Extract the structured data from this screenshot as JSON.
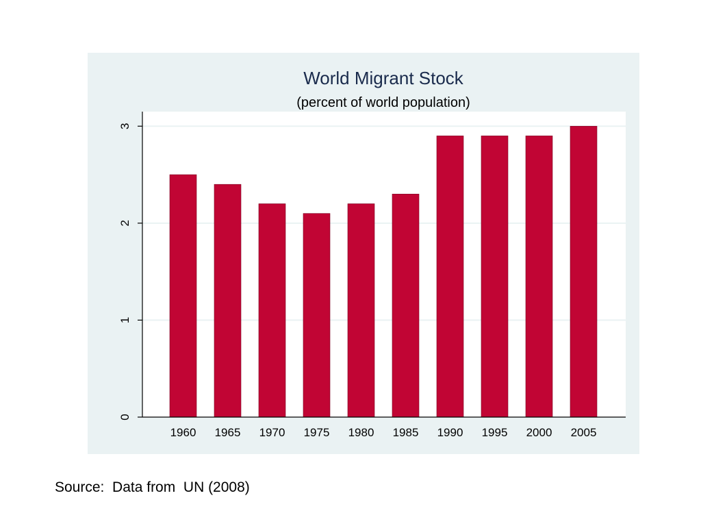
{
  "colors": {
    "panel_background": "#eaf2f3",
    "plot_background": "#ffffff",
    "bar": "#c10534",
    "title": "#1a2b4c",
    "gridline": "#eaf2f3",
    "axis": "#000000"
  },
  "chart_data": {
    "type": "bar",
    "title": "World Migrant Stock",
    "subtitle": "(percent of world population)",
    "xlabel": "",
    "ylabel": "",
    "categories": [
      "1960",
      "1965",
      "1970",
      "1975",
      "1980",
      "1985",
      "1990",
      "1995",
      "2000",
      "2005"
    ],
    "values": [
      2.5,
      2.4,
      2.2,
      2.1,
      2.2,
      2.3,
      2.9,
      2.9,
      2.9,
      3.0
    ],
    "ylim": [
      0,
      3.15
    ],
    "yticks": [
      0,
      1,
      2,
      3
    ],
    "grid": true,
    "legend": "none"
  },
  "footer": {
    "source": "Source:  Data from  UN (2008)"
  }
}
